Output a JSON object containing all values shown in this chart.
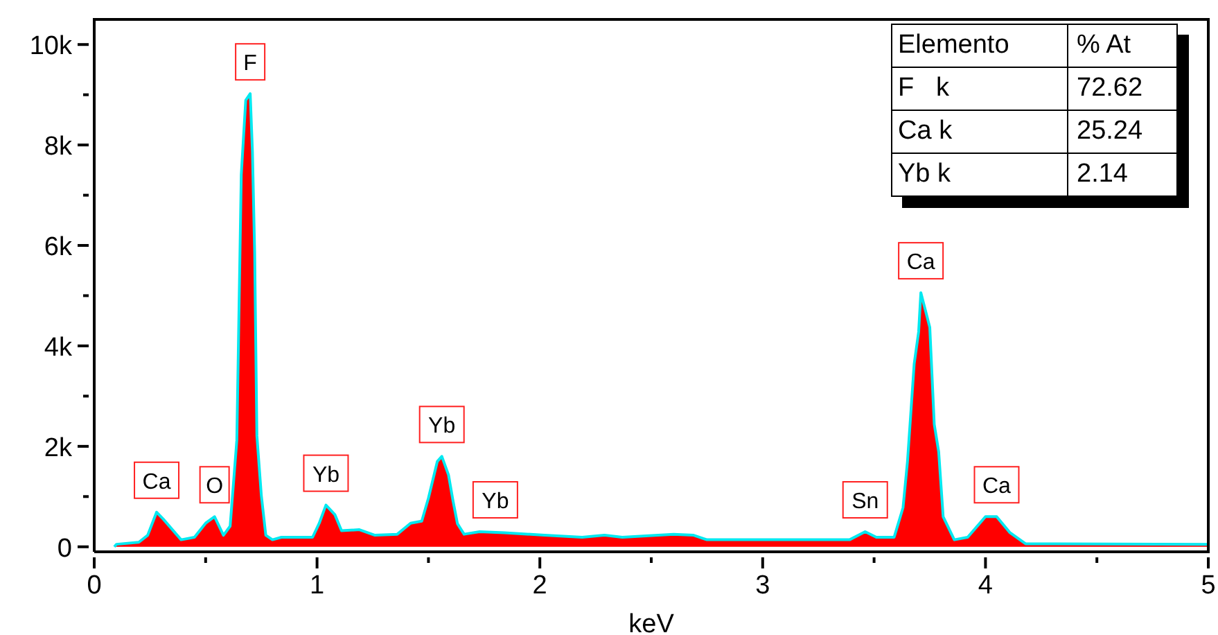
{
  "chart_data": {
    "type": "area",
    "xlabel": "keV",
    "x": [
      0.09,
      0.1,
      0.2,
      0.24,
      0.28,
      0.31,
      0.39,
      0.45,
      0.5,
      0.54,
      0.58,
      0.61,
      0.64,
      0.66,
      0.68,
      0.7,
      0.71,
      0.72,
      0.73,
      0.75,
      0.77,
      0.8,
      0.84,
      0.98,
      1.01,
      1.04,
      1.08,
      1.11,
      1.19,
      1.26,
      1.36,
      1.42,
      1.47,
      1.5,
      1.54,
      1.56,
      1.59,
      1.61,
      1.63,
      1.66,
      1.73,
      1.84,
      2.02,
      2.19,
      2.29,
      2.37,
      2.6,
      2.69,
      2.75,
      3.39,
      3.46,
      3.51,
      3.59,
      3.63,
      3.65,
      3.68,
      3.7,
      3.71,
      3.75,
      3.77,
      3.79,
      3.81,
      3.86,
      3.92,
      4.0,
      4.05,
      4.11,
      4.18,
      5.0
    ],
    "series": [
      {
        "color": "#ff0000",
        "values": [
          0,
          50,
          90,
          230,
          690,
          550,
          140,
          190,
          470,
          600,
          230,
          410,
          2120,
          7410,
          8890,
          9020,
          7870,
          5850,
          2210,
          1020,
          230,
          140,
          190,
          190,
          470,
          830,
          640,
          320,
          340,
          230,
          250,
          470,
          510,
          970,
          1700,
          1800,
          1430,
          920,
          460,
          250,
          300,
          280,
          230,
          190,
          230,
          190,
          250,
          230,
          140,
          140,
          300,
          190,
          190,
          780,
          1700,
          3640,
          4280,
          5060,
          4370,
          2440,
          1890,
          600,
          140,
          190,
          600,
          600,
          280,
          60,
          50
        ]
      }
    ],
    "xlim": [
      0,
      5
    ],
    "xticks": [
      0,
      {
        "value": 0.5,
        "label": null
      },
      1,
      {
        "value": 1.5,
        "label": null
      },
      2,
      {
        "value": 2.5,
        "label": null
      },
      3,
      {
        "value": 3.5,
        "label": null
      },
      4,
      {
        "value": 4.5,
        "label": null
      },
      5
    ],
    "ylim": [
      -100,
      10500
    ],
    "yticks": [
      0,
      {
        "value": 1000,
        "label": null
      },
      {
        "value": 2000,
        "label": "2k"
      },
      {
        "value": 3000,
        "label": null
      },
      {
        "value": 4000,
        "label": "4k"
      },
      {
        "value": 5000,
        "label": null
      },
      {
        "value": 6000,
        "label": "6k"
      },
      {
        "value": 7000,
        "label": null
      },
      {
        "value": 8000,
        "label": "8k"
      },
      {
        "value": 9000,
        "label": null
      },
      {
        "value": 10000,
        "label": "10k"
      }
    ],
    "marker": "none",
    "annotations": [
      {
        "text": "Ca",
        "x": 0.28,
        "y": 690
      },
      {
        "text": "O",
        "x": 0.54,
        "y": 600
      },
      {
        "text": "F",
        "x": 0.7,
        "y": 9020
      },
      {
        "text": "Yb",
        "x": 1.04,
        "y": 830
      },
      {
        "text": "Yb",
        "x": 1.56,
        "y": 1800
      },
      {
        "text": "Yb",
        "x": 1.8,
        "y": 300
      },
      {
        "text": "Sn",
        "x": 3.46,
        "y": 300
      },
      {
        "text": "Ca",
        "x": 3.71,
        "y": 5060
      },
      {
        "text": "Ca",
        "x": 4.05,
        "y": 600
      },
      "Elemento",
      "% At",
      "F   k",
      "72.62",
      "Ca k",
      "25.24",
      "Yb k",
      "2.14"
    ]
  }
}
